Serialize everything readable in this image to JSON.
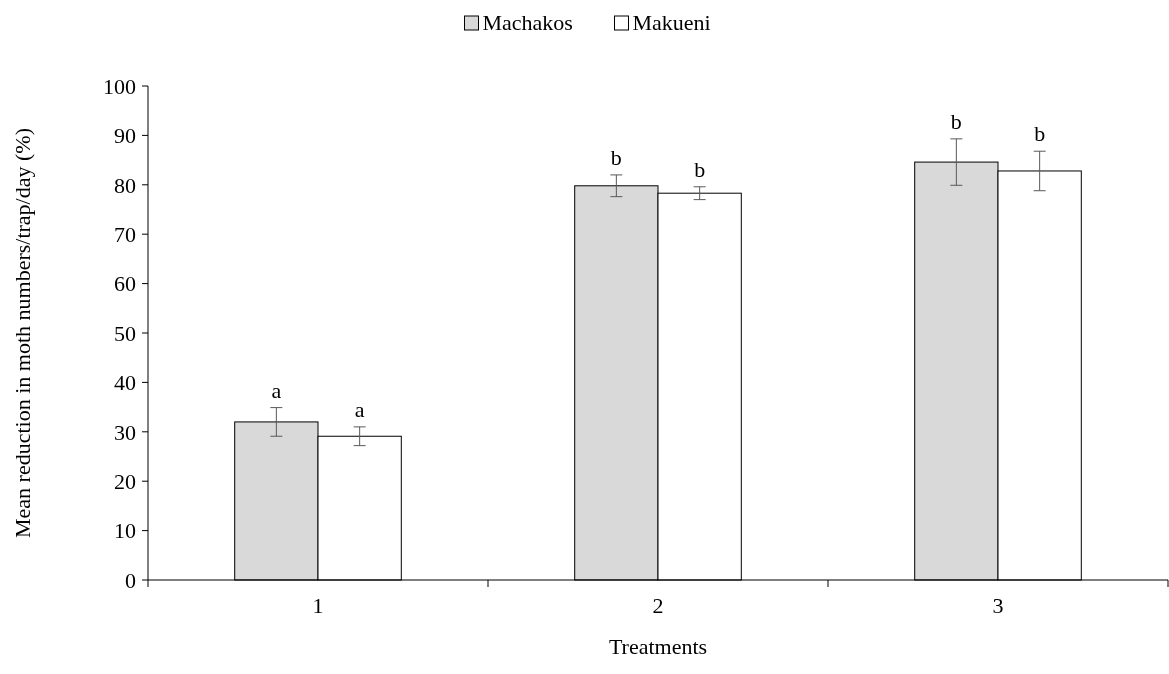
{
  "chart_data": {
    "type": "bar",
    "xlabel": "Treatments",
    "ylabel": "Mean reduction in moth numbers/trap/day (%)",
    "categories": [
      "1",
      "2",
      "3"
    ],
    "series": [
      {
        "name": "Machakos",
        "color": "#d9d9d9",
        "values": [
          32.0,
          79.8,
          84.6
        ],
        "errors": [
          2.9,
          2.2,
          4.7
        ],
        "value_labels": [
          "a",
          "b",
          "b"
        ]
      },
      {
        "name": "Makueni",
        "color": "#ffffff",
        "values": [
          29.1,
          78.3,
          82.8
        ],
        "errors": [
          1.9,
          1.3,
          4.0
        ],
        "value_labels": [
          "a",
          "b",
          "b"
        ]
      }
    ],
    "ylim": [
      0,
      100
    ],
    "yticks": [
      0,
      10,
      20,
      30,
      40,
      50,
      60,
      70,
      80,
      90,
      100
    ],
    "grid": false,
    "legend": "top"
  }
}
